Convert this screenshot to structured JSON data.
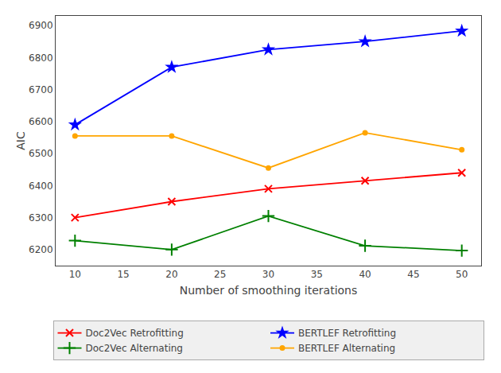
{
  "chart_data": {
    "type": "line",
    "xlabel": "Number of smoothing iterations",
    "ylabel": "AIC",
    "x": [
      10,
      20,
      30,
      40,
      50
    ],
    "series": [
      {
        "name": "Doc2Vec Retrofitting",
        "color": "#ff0000",
        "marker": "x",
        "values": [
          6300,
          6350,
          6390,
          6415,
          6440
        ]
      },
      {
        "name": "BERTLEF Retrofitting",
        "color": "#0000ff",
        "marker": "star",
        "values": [
          6590,
          6770,
          6825,
          6850,
          6883
        ]
      },
      {
        "name": "Doc2Vec Alternating",
        "color": "#008000",
        "marker": "plus",
        "values": [
          6228,
          6200,
          6305,
          6212,
          6197
        ]
      },
      {
        "name": "BERTLEF Alternating",
        "color": "#ffa500",
        "marker": "circle",
        "values": [
          6555,
          6555,
          6455,
          6565,
          6512
        ]
      }
    ],
    "xlim": [
      8,
      52
    ],
    "ylim": [
      6150,
      6930
    ],
    "xticks": [
      10,
      15,
      20,
      25,
      30,
      35,
      40,
      45,
      50
    ],
    "yticks": [
      6200,
      6300,
      6400,
      6500,
      6600,
      6700,
      6800,
      6900
    ],
    "grid": false,
    "legend": "bottom"
  }
}
